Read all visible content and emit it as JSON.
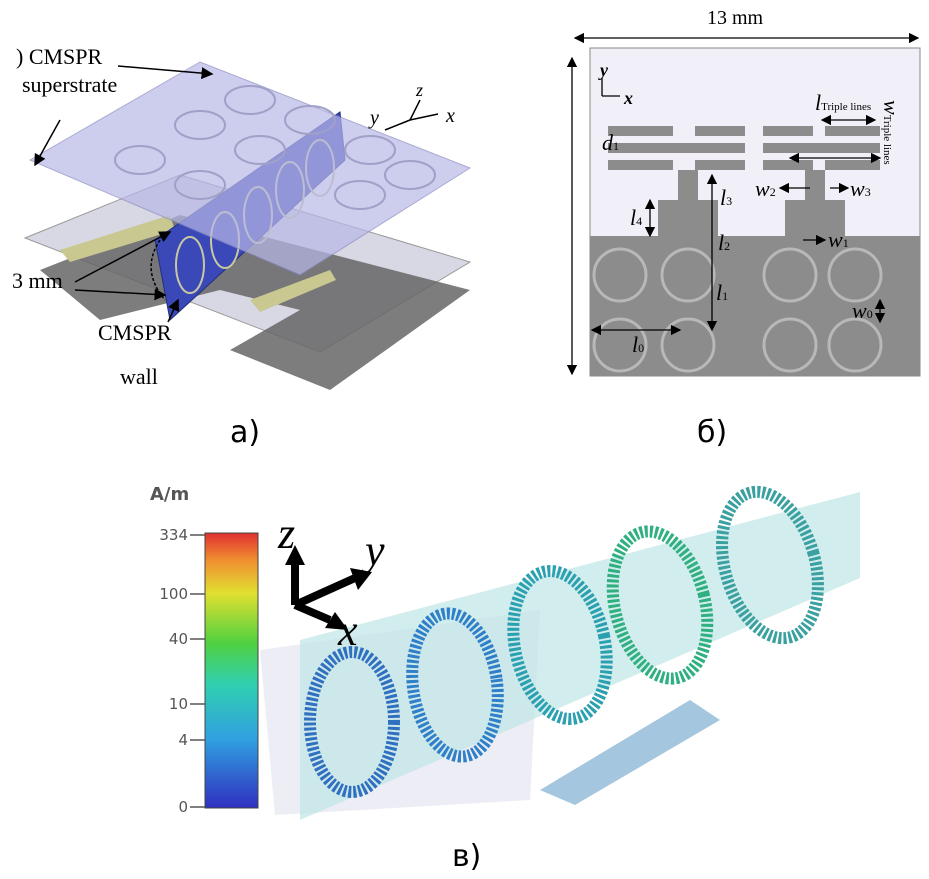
{
  "panel_a": {
    "labels": {
      "superstrate_1": ") CMSPR",
      "superstrate_2": "superstrate",
      "thickness": "3 mm",
      "wall_1": "CMSPR",
      "wall_2": "wall"
    },
    "axes": {
      "y": "y",
      "z": "z",
      "x": "x"
    },
    "caption": "а)"
  },
  "panel_b": {
    "width_label": "13 mm",
    "axes": {
      "y": "y",
      "x": "x"
    },
    "dims": {
      "l_triple": {
        "main": "l",
        "sub": "Triple lines"
      },
      "w_triple": {
        "main": "w",
        "sub": "Triple lines"
      },
      "d1": {
        "main": "d",
        "sub": "1"
      },
      "l3": {
        "main": "l",
        "sub": "3"
      },
      "l4": {
        "main": "l",
        "sub": "4"
      },
      "l2": {
        "main": "l",
        "sub": "2"
      },
      "l1": {
        "main": "l",
        "sub": "1"
      },
      "l0": {
        "main": "l",
        "sub": "0"
      },
      "w2": {
        "main": "w",
        "sub": "2"
      },
      "w3": {
        "main": "w",
        "sub": "3"
      },
      "w1": {
        "main": "w",
        "sub": "1"
      },
      "w0": {
        "main": "w",
        "sub": "0"
      }
    },
    "caption": "б)"
  },
  "panel_c": {
    "unit": "A/m",
    "colorbar_ticks": [
      334,
      100,
      40,
      10,
      4,
      0
    ],
    "axes": {
      "z": "z",
      "y": "y",
      "x": "x"
    },
    "caption": "в)"
  }
}
